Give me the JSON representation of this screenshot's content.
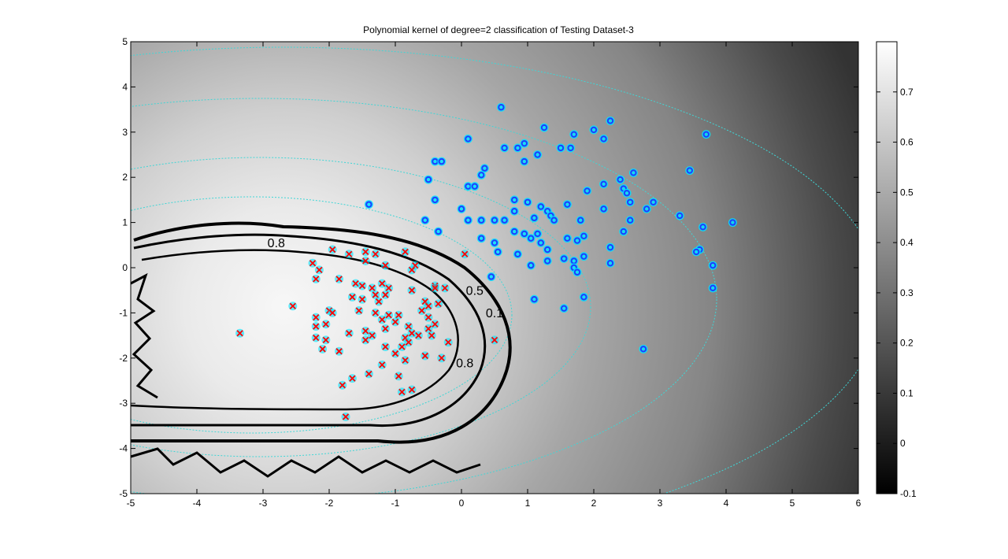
{
  "chart_data": {
    "type": "scatter",
    "title": "Polynomial kernel of degree=2 classification of Testing Dataset-3",
    "xlabel": "",
    "ylabel": "",
    "xlim": [
      -5,
      6
    ],
    "ylim": [
      -5,
      5
    ],
    "xticks": [
      "-5",
      "-4",
      "-3",
      "-2",
      "-1",
      "0",
      "1",
      "2",
      "3",
      "4",
      "5",
      "6"
    ],
    "yticks": [
      "5",
      "4",
      "3",
      "2",
      "1",
      "0",
      "-1",
      "-2",
      "-3",
      "-4",
      "-5"
    ],
    "grid": false,
    "background": "grayscale decision-value map, brightest near (-2.5, -1), darker toward the edges",
    "contour_labels": [
      {
        "text": "0.8",
        "x": -2.8,
        "y": 0.45
      },
      {
        "text": "0.5",
        "x": 0.2,
        "y": -0.6
      },
      {
        "text": "0.8",
        "x": 0.05,
        "y": -2.2
      },
      {
        "text": "0.1",
        "x": 0.5,
        "y": -1.1
      }
    ],
    "colorbar": {
      "range": [
        -0.1,
        0.8
      ],
      "ticks": [
        "0.7",
        "0.6",
        "0.5",
        "0.4",
        "0.3",
        "0.2",
        "0.1",
        "0",
        "-0.1"
      ],
      "colormap": "gray"
    },
    "series": [
      {
        "marker": "o",
        "color": "#1f3cff",
        "points": [
          [
            0.6,
            3.55
          ],
          [
            1.25,
            3.1
          ],
          [
            2.0,
            3.05
          ],
          [
            2.25,
            3.25
          ],
          [
            3.7,
            2.95
          ],
          [
            0.1,
            2.85
          ],
          [
            2.15,
            2.85
          ],
          [
            0.95,
            2.75
          ],
          [
            0.85,
            2.65
          ],
          [
            1.7,
            2.95
          ],
          [
            0.65,
            2.65
          ],
          [
            1.5,
            2.65
          ],
          [
            1.65,
            2.65
          ],
          [
            0.95,
            2.35
          ],
          [
            1.15,
            2.5
          ],
          [
            -0.4,
            2.35
          ],
          [
            -0.3,
            2.35
          ],
          [
            0.35,
            2.2
          ],
          [
            0.3,
            2.05
          ],
          [
            -0.5,
            1.95
          ],
          [
            2.6,
            2.1
          ],
          [
            3.45,
            2.15
          ],
          [
            2.4,
            1.95
          ],
          [
            2.15,
            1.85
          ],
          [
            0.1,
            1.8
          ],
          [
            0.2,
            1.8
          ],
          [
            1.9,
            1.7
          ],
          [
            2.45,
            1.75
          ],
          [
            2.5,
            1.65
          ],
          [
            2.9,
            1.45
          ],
          [
            2.15,
            1.3
          ],
          [
            2.55,
            1.45
          ],
          [
            0.8,
            1.5
          ],
          [
            1.0,
            1.45
          ],
          [
            0.0,
            1.3
          ],
          [
            0.8,
            1.25
          ],
          [
            1.2,
            1.35
          ],
          [
            1.3,
            1.25
          ],
          [
            1.6,
            1.4
          ],
          [
            -0.4,
            1.5
          ],
          [
            1.35,
            1.15
          ],
          [
            0.1,
            1.05
          ],
          [
            0.3,
            1.05
          ],
          [
            0.5,
            1.05
          ],
          [
            0.65,
            1.05
          ],
          [
            -0.55,
            1.05
          ],
          [
            1.1,
            1.1
          ],
          [
            1.4,
            1.05
          ],
          [
            1.8,
            1.05
          ],
          [
            2.55,
            1.05
          ],
          [
            3.3,
            1.15
          ],
          [
            2.8,
            1.3
          ],
          [
            -0.35,
            0.8
          ],
          [
            0.3,
            0.65
          ],
          [
            0.5,
            0.55
          ],
          [
            0.8,
            0.8
          ],
          [
            0.95,
            0.75
          ],
          [
            1.15,
            0.75
          ],
          [
            1.2,
            0.55
          ],
          [
            1.05,
            0.65
          ],
          [
            1.6,
            0.65
          ],
          [
            1.75,
            0.6
          ],
          [
            1.85,
            0.7
          ],
          [
            2.45,
            0.8
          ],
          [
            0.55,
            0.35
          ],
          [
            0.85,
            0.3
          ],
          [
            1.3,
            0.4
          ],
          [
            1.3,
            0.15
          ],
          [
            1.55,
            0.2
          ],
          [
            1.7,
            0.15
          ],
          [
            1.85,
            0.25
          ],
          [
            2.25,
            0.45
          ],
          [
            1.7,
            0.0
          ],
          [
            1.75,
            -0.1
          ],
          [
            2.25,
            0.1
          ],
          [
            3.6,
            0.4
          ],
          [
            3.55,
            0.35
          ],
          [
            3.65,
            0.9
          ],
          [
            3.8,
            0.05
          ],
          [
            3.8,
            -0.45
          ],
          [
            4.1,
            1.0
          ],
          [
            0.45,
            -0.2
          ],
          [
            1.1,
            -0.7
          ],
          [
            1.55,
            -0.9
          ],
          [
            1.85,
            -0.65
          ],
          [
            2.75,
            -1.8
          ],
          [
            1.05,
            0.05
          ],
          [
            -1.4,
            1.4
          ]
        ]
      },
      {
        "marker": "x",
        "color": "#ff0000",
        "points": [
          [
            -1.95,
            0.4
          ],
          [
            -1.7,
            0.3
          ],
          [
            -1.45,
            0.35
          ],
          [
            -1.3,
            0.3
          ],
          [
            -0.85,
            0.35
          ],
          [
            -1.15,
            0.05
          ],
          [
            -2.25,
            0.1
          ],
          [
            -2.15,
            -0.05
          ],
          [
            -0.7,
            0.05
          ],
          [
            -0.75,
            -0.05
          ],
          [
            -1.45,
            0.15
          ],
          [
            -2.2,
            -0.25
          ],
          [
            -1.6,
            -0.35
          ],
          [
            -1.5,
            -0.4
          ],
          [
            -1.35,
            -0.45
          ],
          [
            -1.2,
            -0.35
          ],
          [
            -1.85,
            -0.25
          ],
          [
            -1.1,
            -0.45
          ],
          [
            -0.75,
            -0.5
          ],
          [
            -0.4,
            -0.4
          ],
          [
            -0.4,
            -0.45
          ],
          [
            -0.55,
            -0.75
          ],
          [
            -0.25,
            -0.45
          ],
          [
            -1.3,
            -0.6
          ],
          [
            -1.5,
            -0.7
          ],
          [
            -1.65,
            -0.65
          ],
          [
            -1.15,
            -0.6
          ],
          [
            -1.25,
            -0.75
          ],
          [
            -0.5,
            -0.85
          ],
          [
            -0.35,
            -0.8
          ],
          [
            -0.6,
            -0.95
          ],
          [
            -2.55,
            -0.85
          ],
          [
            -2.0,
            -0.95
          ],
          [
            -1.95,
            -1.0
          ],
          [
            -2.2,
            -1.1
          ],
          [
            -2.05,
            -1.25
          ],
          [
            -2.2,
            -1.3
          ],
          [
            -1.55,
            -0.95
          ],
          [
            -1.3,
            -1.0
          ],
          [
            -1.1,
            -1.05
          ],
          [
            -0.95,
            -1.05
          ],
          [
            -1.0,
            -1.2
          ],
          [
            -1.2,
            -1.15
          ],
          [
            -0.8,
            -1.3
          ],
          [
            -0.5,
            -1.1
          ],
          [
            -0.4,
            -1.25
          ],
          [
            -0.5,
            -1.35
          ],
          [
            -0.75,
            -1.45
          ],
          [
            -1.15,
            -1.35
          ],
          [
            -1.45,
            -1.4
          ],
          [
            -1.7,
            -1.45
          ],
          [
            -1.35,
            -1.5
          ],
          [
            -0.85,
            -1.55
          ],
          [
            -0.8,
            -1.65
          ],
          [
            -0.65,
            -1.5
          ],
          [
            -0.45,
            -1.5
          ],
          [
            -0.2,
            -1.65
          ],
          [
            -3.35,
            -1.45
          ],
          [
            -2.2,
            -1.55
          ],
          [
            -2.05,
            -1.6
          ],
          [
            -1.85,
            -1.85
          ],
          [
            -2.1,
            -1.8
          ],
          [
            -1.45,
            -1.6
          ],
          [
            -1.15,
            -1.75
          ],
          [
            -1.0,
            -1.9
          ],
          [
            -0.9,
            -1.75
          ],
          [
            -0.55,
            -1.95
          ],
          [
            -0.3,
            -2.0
          ],
          [
            -0.85,
            -2.05
          ],
          [
            -1.2,
            -2.15
          ],
          [
            -1.65,
            -2.45
          ],
          [
            -1.4,
            -2.35
          ],
          [
            -0.95,
            -2.4
          ],
          [
            -0.9,
            -2.75
          ],
          [
            -0.75,
            -2.7
          ],
          [
            -1.8,
            -2.6
          ],
          [
            -1.75,
            -3.3
          ],
          [
            0.05,
            0.3
          ],
          [
            0.5,
            -1.6
          ]
        ]
      }
    ]
  }
}
